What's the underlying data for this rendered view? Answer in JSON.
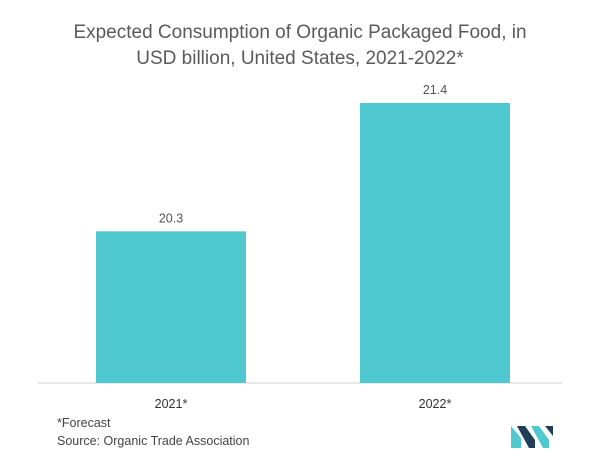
{
  "title_line1": "Expected Consumption of Organic Packaged Food, in",
  "title_line2": "USD billion, United States, 2021-2022*",
  "footnote": "*Forecast",
  "source": "Source: Organic Trade Association",
  "colors": {
    "bar": "#4fc9cf",
    "axis": "#d0d0d0",
    "text": "#555555",
    "logo_dark": "#1f3e5a",
    "logo_teal": "#4fc9cf"
  },
  "chart_data": {
    "type": "bar",
    "title": "Expected Consumption of Organic Packaged Food, in USD billion, United States, 2021-2022*",
    "categories": [
      "2021*",
      "2022*"
    ],
    "values": [
      20.3,
      21.4
    ],
    "value_labels": [
      "20.3",
      "21.4"
    ],
    "xlabel": "",
    "ylabel": "",
    "ylim": [
      19.0,
      21.4
    ],
    "grid": false,
    "legend": "none"
  }
}
